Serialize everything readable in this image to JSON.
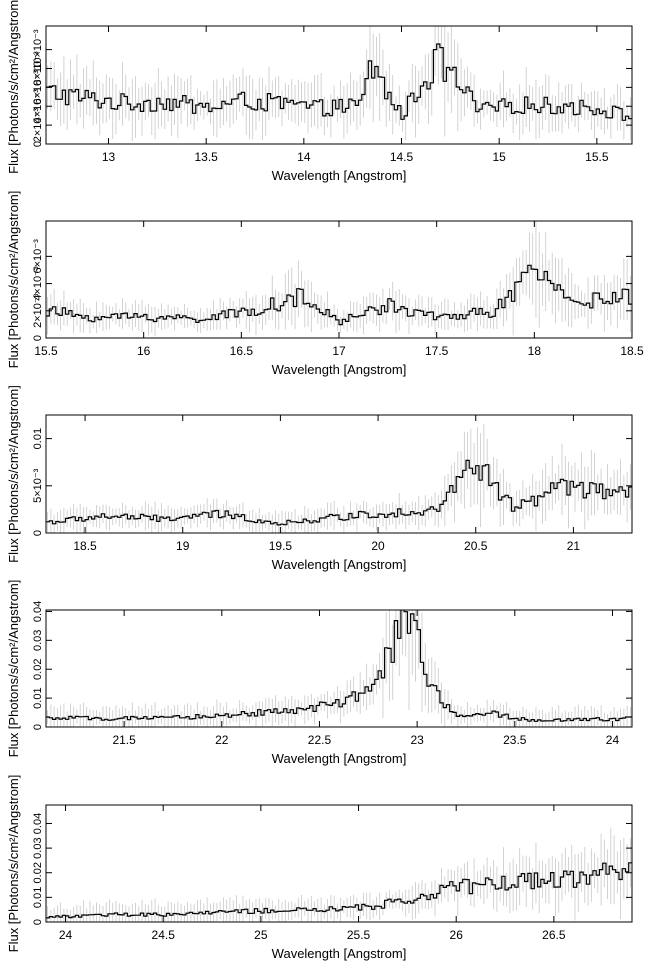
{
  "chart_data": [
    {
      "type": "line",
      "xlabel": "Wavelength [Angstrom]",
      "ylabel": "Flux [Photons/s/cm²/Angstrom]",
      "xlim": [
        12.68,
        15.68
      ],
      "ylim": [
        0,
        0.0125
      ],
      "y_scale_label": "×10⁻³",
      "xticks": [
        {
          "v": 13,
          "t": "13"
        },
        {
          "v": 13.5,
          "t": "13.5"
        },
        {
          "v": 14,
          "t": "14"
        },
        {
          "v": 14.5,
          "t": "14.5"
        },
        {
          "v": 15,
          "t": "15"
        },
        {
          "v": 15.5,
          "t": "15.5"
        }
      ],
      "yticks": [
        {
          "v": 0,
          "t": "0"
        },
        {
          "v": 0.002,
          "t": "2×10⁻³"
        },
        {
          "v": 0.004,
          "t": "4×10⁻³"
        },
        {
          "v": 0.006,
          "t": "6×10⁻³"
        },
        {
          "v": 0.008,
          "t": "8×10⁻³"
        },
        {
          "v": 0.01,
          "t": "10×10⁻³"
        }
      ],
      "x": [
        12.7,
        12.9,
        13.1,
        13.3,
        13.5,
        13.7,
        13.9,
        14.1,
        14.3,
        14.34,
        14.5,
        14.69,
        14.9,
        15.1,
        15.3,
        15.5,
        15.66
      ],
      "y": [
        0.0055,
        0.0048,
        0.0043,
        0.0045,
        0.0038,
        0.0046,
        0.0042,
        0.0038,
        0.0041,
        0.0085,
        0.003,
        0.0089,
        0.0035,
        0.0042,
        0.004,
        0.0038,
        0.003
      ]
    },
    {
      "type": "line",
      "xlabel": "Wavelength [Angstrom]",
      "ylabel": "Flux [Photons/s/cm²/Angstrom]",
      "xlim": [
        15.5,
        18.5
      ],
      "ylim": [
        0,
        0.0086
      ],
      "y_scale_label": "×10⁻³",
      "xticks": [
        {
          "v": 15.5,
          "t": "15.5"
        },
        {
          "v": 16,
          "t": "16"
        },
        {
          "v": 16.5,
          "t": "16.5"
        },
        {
          "v": 17,
          "t": "17"
        },
        {
          "v": 17.5,
          "t": "17.5"
        },
        {
          "v": 18,
          "t": "18"
        },
        {
          "v": 18.5,
          "t": "18.5"
        }
      ],
      "yticks": [
        {
          "v": 0,
          "t": "0"
        },
        {
          "v": 0.002,
          "t": "2×10⁻³"
        },
        {
          "v": 0.004,
          "t": "4×10⁻³"
        },
        {
          "v": 0.006,
          "t": "6×10⁻³"
        }
      ],
      "x": [
        15.5,
        15.75,
        16.0,
        16.25,
        16.5,
        16.8,
        17.0,
        17.25,
        17.5,
        17.8,
        18.0,
        18.25,
        18.45
      ],
      "y": [
        0.002,
        0.0015,
        0.0016,
        0.0014,
        0.0018,
        0.003,
        0.0012,
        0.0024,
        0.0015,
        0.002,
        0.0048,
        0.0026,
        0.003
      ]
    },
    {
      "type": "line",
      "xlabel": "Wavelength [Angstrom]",
      "ylabel": "Flux [Photons/s/cm²/Angstrom]",
      "xlim": [
        18.3,
        21.3
      ],
      "ylim": [
        0,
        0.0125
      ],
      "y_scale_label": "×10⁻³",
      "xticks": [
        {
          "v": 18.5,
          "t": "18.5"
        },
        {
          "v": 19,
          "t": "19"
        },
        {
          "v": 19.5,
          "t": "19.5"
        },
        {
          "v": 20,
          "t": "20"
        },
        {
          "v": 20.5,
          "t": "20.5"
        },
        {
          "v": 21,
          "t": "21"
        }
      ],
      "yticks": [
        {
          "v": 0,
          "t": "0"
        },
        {
          "v": 0.005,
          "t": "5×10⁻³"
        },
        {
          "v": 0.01,
          "t": "0.01"
        }
      ],
      "x": [
        18.35,
        18.6,
        18.9,
        19.2,
        19.5,
        19.8,
        20.1,
        20.3,
        20.5,
        20.7,
        20.95,
        21.25
      ],
      "y": [
        0.0012,
        0.0018,
        0.0015,
        0.002,
        0.001,
        0.0017,
        0.0022,
        0.0025,
        0.0075,
        0.0025,
        0.005,
        0.004
      ]
    },
    {
      "type": "line",
      "xlabel": "Wavelength [Angstrom]",
      "ylabel": "Flux [Photons/s/cm²/Angstrom]",
      "xlim": [
        21.1,
        24.1
      ],
      "ylim": [
        0,
        0.0405
      ],
      "xticks": [
        {
          "v": 21.5,
          "t": "21.5"
        },
        {
          "v": 22,
          "t": "22"
        },
        {
          "v": 22.5,
          "t": "22.5"
        },
        {
          "v": 23,
          "t": "23"
        },
        {
          "v": 23.5,
          "t": "23.5"
        },
        {
          "v": 24,
          "t": "24"
        }
      ],
      "yticks": [
        {
          "v": 0,
          "t": "0"
        },
        {
          "v": 0.01,
          "t": "0.01"
        },
        {
          "v": 0.02,
          "t": "0.02"
        },
        {
          "v": 0.03,
          "t": "0.03"
        },
        {
          "v": 0.04,
          "t": "0.04"
        }
      ],
      "x": [
        21.1,
        21.7,
        22.0,
        22.3,
        22.5,
        22.62,
        22.8,
        22.9,
        22.95,
        23.0,
        23.05,
        23.2,
        23.35,
        23.6,
        23.8,
        24.1
      ],
      "y": [
        0.003,
        0.003,
        0.004,
        0.0055,
        0.007,
        0.008,
        0.015,
        0.033,
        0.038,
        0.032,
        0.016,
        0.0035,
        0.005,
        0.002,
        0.0025,
        0.003
      ]
    },
    {
      "type": "line",
      "xlabel": "Wavelength [Angstrom]",
      "ylabel": "Flux [Photons/s/cm²/Angstrom]",
      "xlim": [
        23.9,
        26.9
      ],
      "ylim": [
        0,
        0.0475
      ],
      "xticks": [
        {
          "v": 24,
          "t": "24"
        },
        {
          "v": 24.5,
          "t": "24.5"
        },
        {
          "v": 25,
          "t": "25"
        },
        {
          "v": 25.5,
          "t": "25.5"
        },
        {
          "v": 26,
          "t": "26"
        },
        {
          "v": 26.5,
          "t": "26.5"
        }
      ],
      "yticks": [
        {
          "v": 0,
          "t": "0"
        },
        {
          "v": 0.01,
          "t": "0.01"
        },
        {
          "v": 0.02,
          "t": "0.02"
        },
        {
          "v": 0.03,
          "t": "0.03"
        },
        {
          "v": 0.04,
          "t": "0.04"
        }
      ],
      "x": [
        23.9,
        24.25,
        24.5,
        24.8,
        25.0,
        25.35,
        25.55,
        25.75,
        26.0,
        26.15,
        26.3,
        26.6,
        26.8,
        26.9
      ],
      "y": [
        0.002,
        0.003,
        0.003,
        0.004,
        0.0045,
        0.005,
        0.006,
        0.009,
        0.014,
        0.015,
        0.0165,
        0.018,
        0.021,
        0.022
      ]
    }
  ]
}
